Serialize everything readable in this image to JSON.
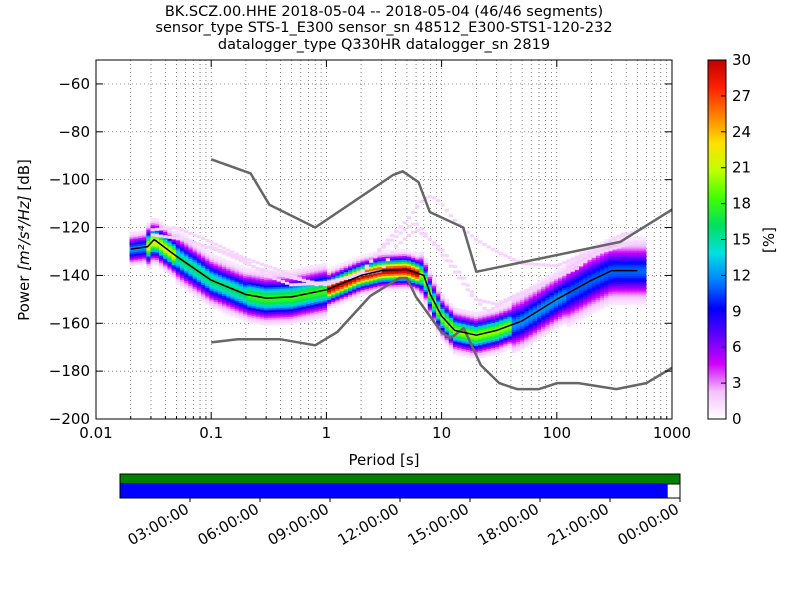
{
  "header": {
    "title_lines": [
      "BK.SCZ.00.HHE   2018-05-04 -- 2018-05-04  (46/46 segments)",
      "sensor_type STS-1_E300 sensor_sn 48512_E300-STS1-120-232",
      "datalogger_type Q330HR datalogger_sn 2819"
    ]
  },
  "chart_data": {
    "type": "heatmap",
    "xlabel": "Period [s]",
    "ylabel_prefix": "Power ",
    "ylabel_units": "[m²/s⁴/Hz]",
    "ylabel_suffix": " [dB]",
    "x_scale": "log",
    "xlim": [
      0.01,
      1000
    ],
    "ylim": [
      -200,
      -50
    ],
    "x_ticks": [
      {
        "value": 0.01,
        "label": "0.01"
      },
      {
        "value": 0.1,
        "label": "0.1"
      },
      {
        "value": 1,
        "label": "1"
      },
      {
        "value": 10,
        "label": "10"
      },
      {
        "value": 100,
        "label": "100"
      },
      {
        "value": 1000,
        "label": "1000"
      }
    ],
    "y_ticks": [
      {
        "value": -60,
        "label": "−60"
      },
      {
        "value": -80,
        "label": "−80"
      },
      {
        "value": -100,
        "label": "−100"
      },
      {
        "value": -120,
        "label": "−120"
      },
      {
        "value": -140,
        "label": "−140"
      },
      {
        "value": -160,
        "label": "−160"
      },
      {
        "value": -180,
        "label": "−180"
      },
      {
        "value": -200,
        "label": "−200"
      }
    ],
    "grid": true,
    "colorbar": {
      "label": "[%]",
      "range": [
        0,
        30
      ],
      "ticks": [
        {
          "value": 0,
          "label": "0"
        },
        {
          "value": 3,
          "label": "3"
        },
        {
          "value": 6,
          "label": "6"
        },
        {
          "value": 9,
          "label": "9"
        },
        {
          "value": 12,
          "label": "12"
        },
        {
          "value": 15,
          "label": "15"
        },
        {
          "value": 18,
          "label": "18"
        },
        {
          "value": 21,
          "label": "21"
        },
        {
          "value": 24,
          "label": "24"
        },
        {
          "value": 27,
          "label": "27"
        },
        {
          "value": 30,
          "label": "30"
        }
      ],
      "colors": [
        "#ffffff",
        "#f3c0ff",
        "#d000ff",
        "#6000ff",
        "#0000ff",
        "#0080ff",
        "#00e0e0",
        "#00e060",
        "#40ff00",
        "#c0ff00",
        "#ffe000",
        "#ff8000",
        "#ff2000",
        "#c00000"
      ]
    },
    "nhnm": {
      "name": "NHNM",
      "period": [
        0.1,
        0.22,
        0.32,
        0.8,
        3.8,
        4.6,
        6.3,
        7.9,
        15.4,
        20,
        354.8,
        1000
      ],
      "power": [
        -91.5,
        -97.4,
        -110.5,
        -120,
        -98,
        -96.5,
        -101,
        -113.5,
        -120,
        -138.5,
        -126,
        -112.5
      ]
    },
    "nlnm": {
      "name": "NLNM",
      "period": [
        0.1,
        0.17,
        0.4,
        0.8,
        1.24,
        2.4,
        4.3,
        5,
        6,
        10,
        12,
        15.6,
        21.9,
        31.6,
        45,
        70,
        101,
        154,
        328,
        600,
        1000
      ],
      "power": [
        -168,
        -166.7,
        -166.7,
        -169.2,
        -163.7,
        -148.6,
        -141.1,
        -141.1,
        -149,
        -163.8,
        -166.2,
        -162.1,
        -177.5,
        -185,
        -187.5,
        -187.5,
        -185,
        -185,
        -187.5,
        -185,
        -178.6
      ]
    },
    "mode_curve": {
      "period": [
        0.02,
        0.028,
        0.032,
        0.05,
        0.1,
        0.2,
        0.3,
        0.5,
        1,
        2,
        3,
        5,
        7,
        8,
        10,
        13,
        20,
        30,
        50,
        100,
        200,
        300,
        500
      ],
      "power": [
        -129,
        -128,
        -125,
        -132,
        -142,
        -148,
        -149.5,
        -149,
        -146,
        -140,
        -138,
        -137.5,
        -140,
        -148,
        -157,
        -163,
        -165,
        -163,
        -159,
        -150,
        -142,
        -138,
        -138
      ]
    },
    "density": [
      {
        "period_start": 0.02,
        "period_end": 0.028,
        "power_center": -129,
        "spread": 4,
        "peak_percent": 12
      },
      {
        "period_start": 0.028,
        "period_end": 0.05,
        "power_center": -128,
        "spread": 5,
        "peak_percent": 22
      },
      {
        "period_start": 0.05,
        "period_end": 0.2,
        "power_center": -142,
        "spread": 6,
        "peak_percent": 16
      },
      {
        "period_start": 0.2,
        "period_end": 1,
        "power_center": -150,
        "spread": 6,
        "peak_percent": 18
      },
      {
        "period_start": 1,
        "period_end": 6.5,
        "power_center": -139,
        "spread": 4,
        "peak_percent": 30
      },
      {
        "period_start": 6.5,
        "period_end": 13,
        "power_center": -157,
        "spread": 5,
        "peak_percent": 20
      },
      {
        "period_start": 13,
        "period_end": 40,
        "power_center": -166,
        "spread": 5,
        "peak_percent": 20
      },
      {
        "period_start": 40,
        "period_end": 120,
        "power_center": -156,
        "spread": 7,
        "peak_percent": 12
      },
      {
        "period_start": 120,
        "period_end": 600,
        "power_center": -140,
        "spread": 8,
        "peak_percent": 11
      }
    ],
    "scattered_traces": [
      {
        "period": [
          0.03,
          0.05,
          0.1,
          0.2,
          0.4,
          0.8,
          1.5,
          3,
          4,
          5,
          6,
          8,
          10,
          15,
          20,
          30,
          50,
          80,
          150,
          300,
          600
        ],
        "power": [
          -121,
          -120,
          -126,
          -133,
          -138,
          -144,
          -141,
          -138,
          -128,
          -124,
          -121,
          -125,
          -129,
          -140,
          -150,
          -152,
          -147,
          -143,
          -137,
          -125,
          -120
        ]
      },
      {
        "period": [
          0.03,
          0.06,
          0.12,
          0.25,
          0.5,
          1,
          2,
          3,
          4,
          5,
          6,
          8,
          12,
          18,
          25,
          40,
          70,
          120,
          250,
          500
        ],
        "power": [
          -123,
          -125,
          -130,
          -137,
          -141,
          -144,
          -139,
          -129,
          -124,
          -120,
          -118,
          -125,
          -136,
          -148,
          -155,
          -150,
          -145,
          -138,
          -130,
          -126
        ]
      },
      {
        "period": [
          0.1,
          0.2,
          0.3,
          0.5,
          1,
          2,
          3,
          5,
          6,
          7,
          8,
          9,
          10,
          12,
          15,
          20,
          30,
          50,
          100,
          200,
          400
        ],
        "power": [
          -128,
          -134,
          -140,
          -144,
          -143,
          -140,
          -128,
          -117,
          -112,
          -108,
          -107,
          -108,
          -110,
          -115,
          -120,
          -125,
          -130,
          -135,
          -136,
          -130,
          -122
        ]
      }
    ]
  },
  "timeline": {
    "labels": [
      "03:00:00",
      "06:00:00",
      "09:00:00",
      "12:00:00",
      "15:00:00",
      "18:00:00",
      "21:00:00",
      "00:00:00"
    ],
    "top_bar_color": "#008000",
    "bottom_bar_color": "#0000ff",
    "bottom_bar_fraction": 0.978
  }
}
